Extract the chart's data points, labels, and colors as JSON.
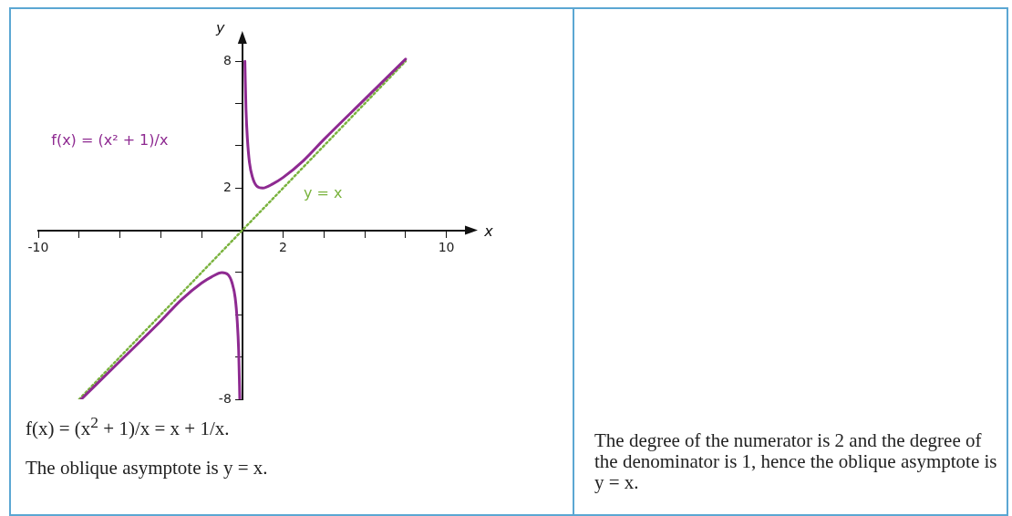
{
  "chart_data": {
    "type": "line",
    "xlabel": "x",
    "ylabel": "y",
    "xlim": [
      -10,
      11
    ],
    "ylim": [
      -8,
      9
    ],
    "xticks": [
      -10,
      {
        "value": -8,
        "label": null
      },
      {
        "value": -6,
        "label": null
      },
      {
        "value": -4,
        "label": null
      },
      {
        "value": -2,
        "label": null
      },
      2,
      {
        "value": 4,
        "label": null
      },
      {
        "value": 6,
        "label": null
      },
      {
        "value": 8,
        "label": null
      },
      10
    ],
    "yticks": [
      -8,
      {
        "value": -6,
        "label": null
      },
      {
        "value": -4,
        "label": null
      },
      {
        "value": -2,
        "label": null
      },
      2,
      {
        "value": 4,
        "label": null
      },
      {
        "value": 6,
        "label": null
      },
      8
    ],
    "series": [
      {
        "name": "f(x) = (x² + 1)/x",
        "color": "#8e2a91",
        "x": [
          -7.9,
          -6,
          -4,
          -3,
          -2,
          -1.5,
          -1,
          -0.7,
          -0.5,
          -0.35,
          -0.25,
          -0.18,
          -0.14,
          -0.125,
          0,
          0.125,
          0.14,
          0.18,
          0.25,
          0.35,
          0.5,
          0.7,
          1,
          1.5,
          2,
          3,
          4,
          6,
          8
        ],
        "values": [
          -8,
          -6.2,
          -4.3,
          -3.3,
          -2.5,
          -2.2,
          -2,
          -2.1,
          -2.5,
          -3.2,
          -4.3,
          -5.7,
          -7.3,
          -8,
          null,
          8,
          7.3,
          5.7,
          4.3,
          3.2,
          2.5,
          2.1,
          2,
          2.2,
          2.5,
          3.3,
          4.3,
          6.2,
          8.1
        ]
      },
      {
        "name": "y = x",
        "color": "#7ab33e",
        "x": [
          -8,
          8
        ],
        "values": [
          -8,
          8
        ],
        "line_style": "dotted"
      }
    ],
    "marker": "none",
    "legend": false,
    "annotations": [
      "f(x) = (x$^{2}$ + 1)/x = x + 1/x.",
      "The oblique asymptote is y = x.",
      "The degree of the numerator is 2 and the degree of the denominator is 1, hence the oblique asymptote is y = x."
    ]
  }
}
